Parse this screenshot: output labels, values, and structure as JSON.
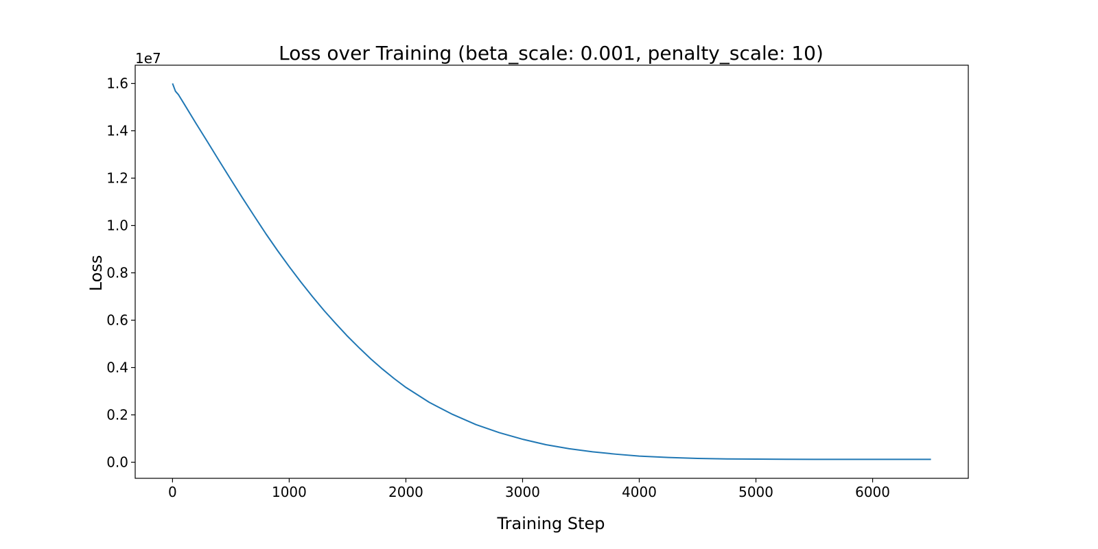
{
  "chart_data": {
    "type": "line",
    "title": "Loss over Training (beta_scale: 0.001, penalty_scale: 10)",
    "xlabel": "Training Step",
    "ylabel": "Loss",
    "y_offset_label": "1e7",
    "xlim": [
      -320,
      6820
    ],
    "ylim": [
      -0.068,
      1.677
    ],
    "x_ticks": [
      0,
      1000,
      2000,
      3000,
      4000,
      5000,
      6000
    ],
    "x_tick_labels": [
      "0",
      "1000",
      "2000",
      "3000",
      "4000",
      "5000",
      "6000"
    ],
    "y_ticks": [
      0.0,
      0.2,
      0.4,
      0.6,
      0.8,
      1.0,
      1.2,
      1.4,
      1.6
    ],
    "y_tick_labels": [
      "0.0",
      "0.2",
      "0.4",
      "0.6",
      "0.8",
      "1.0",
      "1.2",
      "1.4",
      "1.6"
    ],
    "grid": false,
    "line_color": "#1f77b4",
    "series": [
      {
        "x": [
          0,
          25,
          50,
          100,
          200,
          300,
          400,
          500,
          600,
          700,
          800,
          900,
          1000,
          1100,
          1200,
          1300,
          1400,
          1500,
          1600,
          1700,
          1800,
          1900,
          2000,
          2200,
          2400,
          2600,
          2800,
          3000,
          3200,
          3400,
          3600,
          3800,
          4000,
          4250,
          4500,
          4750,
          5000,
          5500,
          6000,
          6500
        ],
        "y": [
          1.6,
          1.567,
          1.553,
          1.513,
          1.432,
          1.353,
          1.273,
          1.194,
          1.116,
          1.04,
          0.965,
          0.894,
          0.826,
          0.761,
          0.699,
          0.64,
          0.585,
          0.532,
          0.483,
          0.436,
          0.393,
          0.353,
          0.316,
          0.253,
          0.202,
          0.159,
          0.125,
          0.097,
          0.074,
          0.057,
          0.044,
          0.034,
          0.026,
          0.02,
          0.016,
          0.014,
          0.013,
          0.012,
          0.012,
          0.012
        ]
      }
    ]
  }
}
